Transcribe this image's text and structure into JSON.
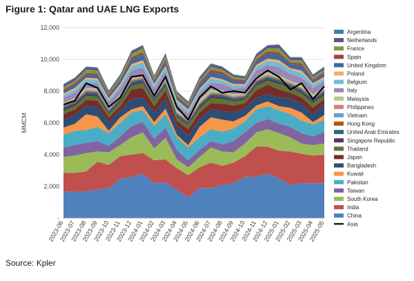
{
  "title": "Figure 1: Qatar and UAE LNG Exports",
  "source": "Source: Kpler",
  "chart_data": {
    "type": "area",
    "stacked": true,
    "title": "Figure 1: Qatar and UAE LNG Exports",
    "xlabel": "",
    "ylabel": "MMCM",
    "ylim": [
      0,
      12000
    ],
    "yticks": [
      0,
      2000,
      4000,
      6000,
      8000,
      10000,
      12000
    ],
    "ytick_labels": [
      "-",
      "2,000",
      "4,000",
      "6,000",
      "8,000",
      "10,000",
      "12,000"
    ],
    "legend_position": "right",
    "x": [
      "2023-06",
      "2023-07",
      "2023-08",
      "2023-09",
      "2023-10",
      "2023-11",
      "2023-12",
      "2024-01",
      "2024-02",
      "2024-03",
      "2024-04",
      "2024-05",
      "2024-06",
      "2024-07",
      "2024-08",
      "2024-09",
      "2024-10",
      "2024-11",
      "2024-12",
      "2025-01",
      "2025-02",
      "2025-03",
      "2025-04",
      "2025-05"
    ],
    "series": [
      {
        "name": "China",
        "color": "#4F81BD",
        "values": [
          1700,
          1650,
          1700,
          1800,
          1900,
          2500,
          2600,
          2800,
          2200,
          2250,
          1800,
          1300,
          1900,
          1900,
          2100,
          2200,
          2600,
          2600,
          2800,
          2500,
          2100,
          2200,
          2200,
          2200
        ]
      },
      {
        "name": "India",
        "color": "#C0504D",
        "values": [
          1150,
          1200,
          1250,
          1750,
          1450,
          1400,
          1400,
          1300,
          1450,
          1450,
          1350,
          1400,
          1300,
          1600,
          1200,
          1300,
          1300,
          1900,
          1700,
          1750,
          2100,
          1850,
          1750,
          1800
        ]
      },
      {
        "name": "South Korea",
        "color": "#9BBB59",
        "values": [
          1000,
          1100,
          1150,
          650,
          800,
          700,
          1100,
          1300,
          750,
          1350,
          550,
          500,
          650,
          950,
          900,
          650,
          800,
          900,
          1100,
          1100,
          900,
          650,
          650,
          700
        ]
      },
      {
        "name": "Taiwan",
        "color": "#8064A2",
        "values": [
          600,
          650,
          650,
          650,
          400,
          550,
          700,
          650,
          600,
          650,
          600,
          450,
          450,
          400,
          450,
          700,
          700,
          600,
          650,
          600,
          650,
          650,
          550,
          750
        ]
      },
      {
        "name": "Pakistan",
        "color": "#4BACC6",
        "values": [
          800,
          900,
          800,
          900,
          800,
          850,
          850,
          750,
          800,
          850,
          800,
          800,
          800,
          750,
          800,
          800,
          700,
          850,
          800,
          850,
          800,
          800,
          750,
          750
        ]
      },
      {
        "name": "Kuwait",
        "color": "#F79646",
        "values": [
          450,
          450,
          1000,
          650,
          150,
          350,
          200,
          250,
          250,
          350,
          150,
          150,
          650,
          750,
          750,
          450,
          350,
          250,
          300,
          250,
          400,
          500,
          150,
          300
        ]
      },
      {
        "name": "Bangladesh",
        "color": "#2C4D75",
        "values": [
          500,
          550,
          550,
          600,
          550,
          400,
          650,
          550,
          600,
          600,
          550,
          600,
          500,
          500,
          550,
          550,
          450,
          500,
          450,
          550,
          600,
          550,
          500,
          700
        ]
      },
      {
        "name": "Japan",
        "color": "#772C2A",
        "values": [
          350,
          350,
          350,
          400,
          300,
          300,
          600,
          600,
          400,
          550,
          350,
          400,
          400,
          400,
          450,
          450,
          350,
          450,
          600,
          500,
          350,
          400,
          400,
          300
        ]
      },
      {
        "name": "Thailand",
        "color": "#5F7530",
        "values": [
          200,
          200,
          250,
          250,
          200,
          250,
          250,
          300,
          300,
          250,
          200,
          250,
          250,
          300,
          300,
          250,
          200,
          300,
          250,
          350,
          300,
          250,
          300,
          250
        ]
      },
      {
        "name": "Singapore Republic",
        "color": "#4D3B62",
        "values": [
          150,
          150,
          150,
          150,
          100,
          100,
          150,
          150,
          100,
          150,
          100,
          100,
          150,
          150,
          150,
          100,
          100,
          150,
          150,
          150,
          100,
          150,
          150,
          150
        ]
      },
      {
        "name": "United Arab Emirates",
        "color": "#276A7C",
        "values": [
          100,
          100,
          100,
          100,
          100,
          100,
          100,
          100,
          100,
          100,
          100,
          100,
          100,
          100,
          100,
          100,
          100,
          100,
          100,
          100,
          100,
          100,
          100,
          100
        ]
      },
      {
        "name": "Hong Kong",
        "color": "#B65708",
        "values": [
          50,
          50,
          50,
          50,
          50,
          50,
          50,
          50,
          50,
          50,
          50,
          50,
          50,
          50,
          50,
          50,
          50,
          50,
          50,
          50,
          50,
          50,
          50,
          50
        ]
      },
      {
        "name": "Vietnam",
        "color": "#729ACA",
        "values": [
          50,
          50,
          50,
          50,
          50,
          50,
          50,
          50,
          50,
          50,
          50,
          50,
          50,
          50,
          50,
          50,
          50,
          50,
          50,
          50,
          50,
          50,
          50,
          50
        ]
      },
      {
        "name": "Philippines",
        "color": "#D27E7C",
        "values": [
          50,
          50,
          50,
          50,
          50,
          50,
          50,
          50,
          50,
          50,
          50,
          50,
          50,
          50,
          50,
          50,
          50,
          50,
          50,
          50,
          50,
          50,
          50,
          50
        ]
      },
      {
        "name": "Malaysia",
        "color": "#B3CC82",
        "values": [
          100,
          100,
          100,
          100,
          100,
          150,
          150,
          150,
          100,
          150,
          100,
          100,
          150,
          150,
          150,
          100,
          100,
          150,
          150,
          150,
          100,
          150,
          150,
          100
        ]
      },
      {
        "name": "Italy",
        "color": "#9C86B8",
        "values": [
          350,
          350,
          350,
          350,
          300,
          350,
          400,
          450,
          350,
          400,
          350,
          300,
          400,
          450,
          400,
          350,
          300,
          400,
          450,
          500,
          450,
          450,
          400,
          350
        ]
      },
      {
        "name": "Belgium",
        "color": "#6FBDD1",
        "values": [
          150,
          200,
          200,
          200,
          150,
          200,
          250,
          300,
          200,
          250,
          200,
          150,
          200,
          250,
          200,
          200,
          150,
          250,
          250,
          300,
          250,
          300,
          200,
          200
        ]
      },
      {
        "name": "Poland",
        "color": "#F9AB6B",
        "values": [
          100,
          100,
          100,
          100,
          100,
          100,
          150,
          150,
          100,
          100,
          100,
          100,
          100,
          100,
          100,
          100,
          100,
          100,
          150,
          150,
          100,
          150,
          100,
          100
        ]
      },
      {
        "name": "United Kingdom",
        "color": "#3A6AA0",
        "values": [
          150,
          200,
          200,
          200,
          150,
          200,
          300,
          350,
          150,
          250,
          150,
          150,
          250,
          300,
          300,
          200,
          150,
          200,
          300,
          350,
          250,
          300,
          150,
          200
        ]
      },
      {
        "name": "Spain",
        "color": "#A5413F",
        "values": [
          100,
          100,
          100,
          100,
          100,
          100,
          150,
          150,
          100,
          150,
          100,
          100,
          150,
          150,
          150,
          100,
          100,
          150,
          150,
          150,
          100,
          150,
          100,
          100
        ]
      },
      {
        "name": "France",
        "color": "#7E9A41",
        "values": [
          150,
          150,
          200,
          200,
          100,
          150,
          200,
          250,
          150,
          200,
          150,
          100,
          150,
          200,
          150,
          150,
          100,
          150,
          200,
          250,
          150,
          200,
          150,
          150
        ]
      },
      {
        "name": "Netherlands",
        "color": "#664F83",
        "values": [
          150,
          150,
          150,
          150,
          100,
          100,
          150,
          150,
          100,
          150,
          100,
          100,
          150,
          150,
          150,
          100,
          100,
          150,
          150,
          200,
          150,
          150,
          100,
          150
        ]
      },
      {
        "name": "Argentina",
        "color": "#2F8BA3",
        "values": [
          50,
          50,
          50,
          50,
          50,
          50,
          50,
          50,
          50,
          50,
          50,
          50,
          50,
          50,
          50,
          50,
          50,
          50,
          50,
          50,
          50,
          50,
          50,
          50
        ]
      }
    ],
    "line_series": {
      "name": "Asia",
      "color": "#000000",
      "values": [
        7150,
        7400,
        8500,
        8200,
        7000,
        7600,
        8900,
        9000,
        7700,
        8900,
        7000,
        6200,
        7600,
        8300,
        7900,
        8000,
        7900,
        8800,
        9300,
        8900,
        8100,
        8500,
        7500,
        8300
      ]
    }
  }
}
